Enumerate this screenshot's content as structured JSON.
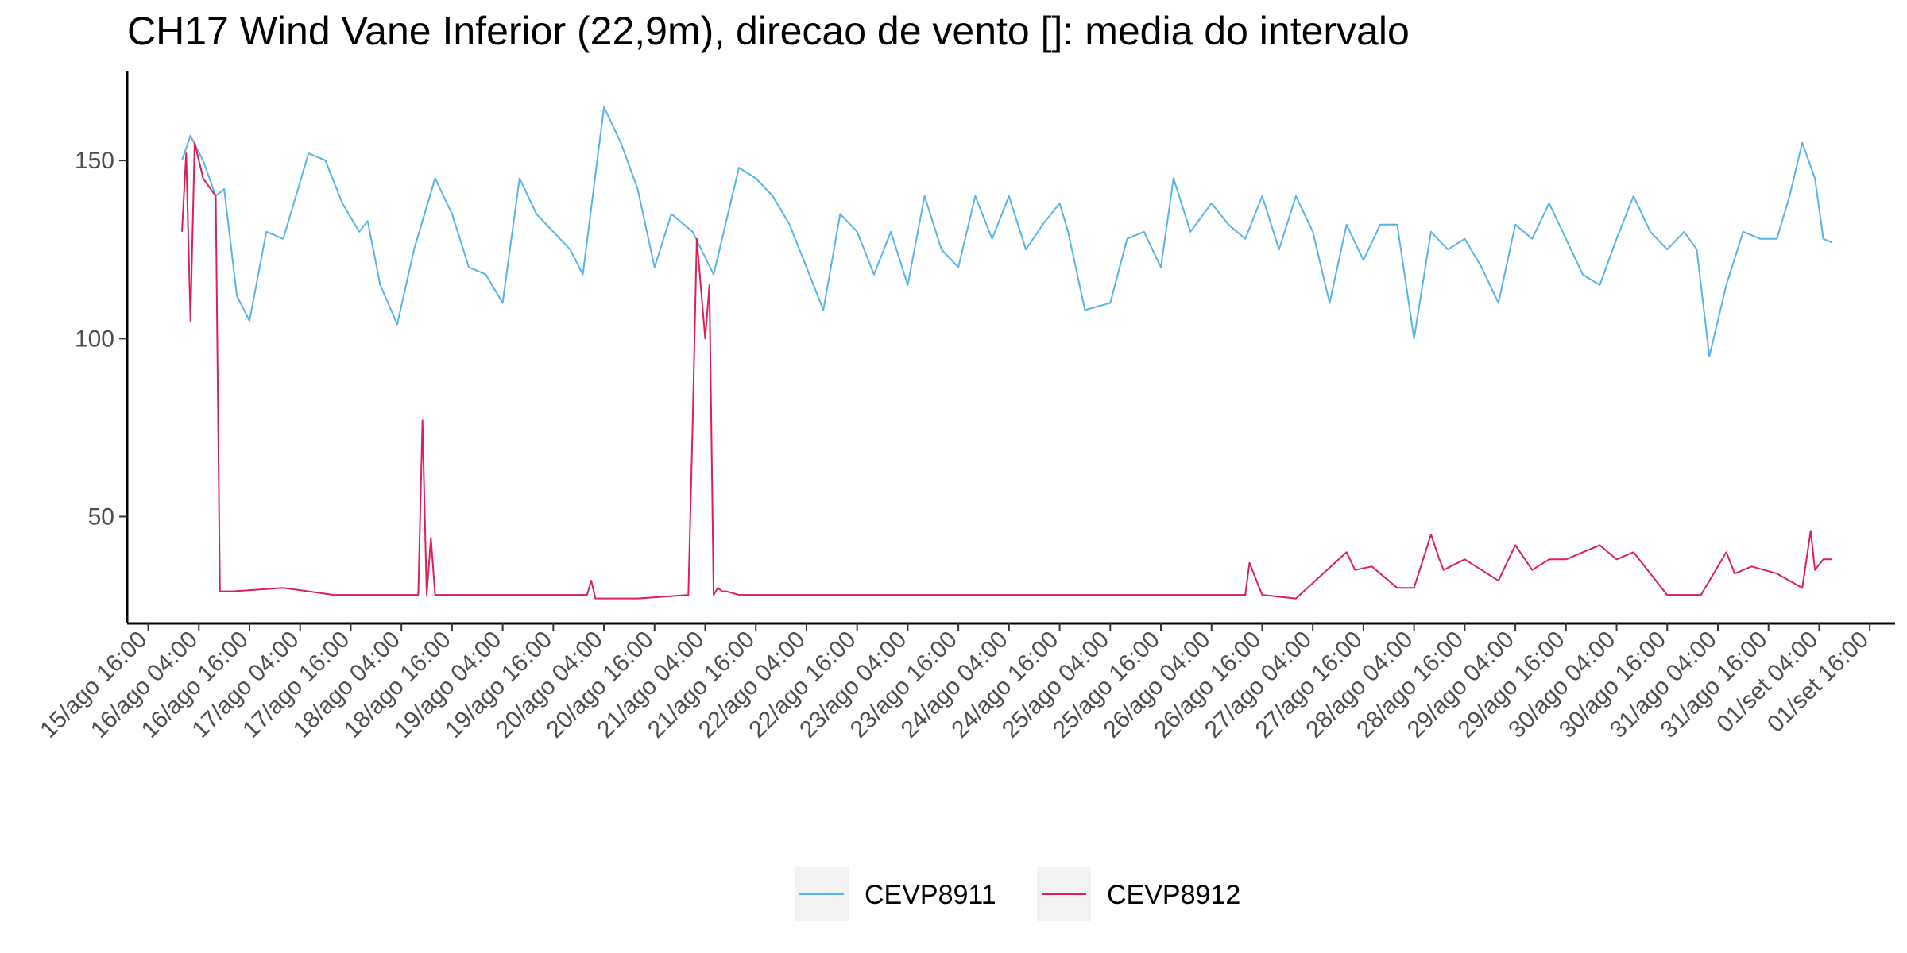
{
  "chart_data": {
    "type": "line",
    "title": "CH17 Wind Vane Inferior (22,9m), direcao de vento []: media do intervalo",
    "xlabel": "",
    "ylabel": "",
    "ylim": [
      20,
      175
    ],
    "xlim": [
      "2020-08-15T11:00",
      "2020-09-01T22:00"
    ],
    "yticks": [
      50,
      100,
      150
    ],
    "xticks": [
      "15/ago 16:00",
      "16/ago 04:00",
      "16/ago 16:00",
      "17/ago 04:00",
      "17/ago 16:00",
      "18/ago 04:00",
      "18/ago 16:00",
      "19/ago 04:00",
      "19/ago 16:00",
      "20/ago 04:00",
      "20/ago 16:00",
      "21/ago 04:00",
      "21/ago 16:00",
      "22/ago 04:00",
      "22/ago 16:00",
      "23/ago 04:00",
      "23/ago 16:00",
      "24/ago 04:00",
      "24/ago 16:00",
      "25/ago 04:00",
      "25/ago 16:00",
      "26/ago 04:00",
      "26/ago 16:00",
      "27/ago 04:00",
      "27/ago 16:00",
      "28/ago 04:00",
      "28/ago 16:00",
      "29/ago 04:00",
      "29/ago 16:00",
      "30/ago 04:00",
      "30/ago 16:00",
      "31/ago 04:00",
      "31/ago 16:00",
      "01/set 04:00",
      "01/set 16:00"
    ],
    "grid": false,
    "legend_position": "bottom",
    "series": [
      {
        "name": "CEVP8911",
        "color": "#56B4E9",
        "x": [
          "2020-08-16T00:00",
          "2020-08-16T02:00",
          "2020-08-16T05:00",
          "2020-08-16T08:00",
          "2020-08-16T10:00",
          "2020-08-16T13:00",
          "2020-08-16T16:00",
          "2020-08-16T20:00",
          "2020-08-17T00:00",
          "2020-08-17T06:00",
          "2020-08-17T10:00",
          "2020-08-17T14:00",
          "2020-08-17T18:00",
          "2020-08-17T20:00",
          "2020-08-17T23:00",
          "2020-08-18T03:00",
          "2020-08-18T07:00",
          "2020-08-18T12:00",
          "2020-08-18T16:00",
          "2020-08-18T20:00",
          "2020-08-19T00:00",
          "2020-08-19T04:00",
          "2020-08-19T08:00",
          "2020-08-19T12:00",
          "2020-08-19T16:00",
          "2020-08-19T20:00",
          "2020-08-19T23:00",
          "2020-08-20T04:00",
          "2020-08-20T08:00",
          "2020-08-20T12:00",
          "2020-08-20T16:00",
          "2020-08-20T20:00",
          "2020-08-21T01:00",
          "2020-08-21T06:00",
          "2020-08-21T12:00",
          "2020-08-21T16:00",
          "2020-08-21T20:00",
          "2020-08-22T00:00",
          "2020-08-22T04:00",
          "2020-08-22T08:00",
          "2020-08-22T12:00",
          "2020-08-22T16:00",
          "2020-08-22T20:00",
          "2020-08-23T00:00",
          "2020-08-23T04:00",
          "2020-08-23T08:00",
          "2020-08-23T12:00",
          "2020-08-23T16:00",
          "2020-08-23T20:00",
          "2020-08-24T00:00",
          "2020-08-24T04:00",
          "2020-08-24T08:00",
          "2020-08-24T12:00",
          "2020-08-24T16:00",
          "2020-08-24T18:00",
          "2020-08-24T22:00",
          "2020-08-25T04:00",
          "2020-08-25T08:00",
          "2020-08-25T12:00",
          "2020-08-25T16:00",
          "2020-08-25T19:00",
          "2020-08-25T23:00",
          "2020-08-26T04:00",
          "2020-08-26T08:00",
          "2020-08-26T12:00",
          "2020-08-26T16:00",
          "2020-08-26T20:00",
          "2020-08-27T00:00",
          "2020-08-27T04:00",
          "2020-08-27T08:00",
          "2020-08-27T12:00",
          "2020-08-27T16:00",
          "2020-08-27T20:00",
          "2020-08-28T00:00",
          "2020-08-28T04:00",
          "2020-08-28T08:00",
          "2020-08-28T12:00",
          "2020-08-28T16:00",
          "2020-08-28T20:00",
          "2020-08-29T00:00",
          "2020-08-29T04:00",
          "2020-08-29T08:00",
          "2020-08-29T12:00",
          "2020-08-29T16:00",
          "2020-08-29T20:00",
          "2020-08-30T00:00",
          "2020-08-30T04:00",
          "2020-08-30T08:00",
          "2020-08-30T12:00",
          "2020-08-30T16:00",
          "2020-08-30T20:00",
          "2020-08-30T23:00",
          "2020-08-31T02:00",
          "2020-08-31T06:00",
          "2020-08-31T10:00",
          "2020-08-31T14:00",
          "2020-08-31T18:00",
          "2020-08-31T21:00",
          "2020-09-01T00:00",
          "2020-09-01T03:00",
          "2020-09-01T05:00",
          "2020-09-01T07:00"
        ],
        "values": [
          150,
          157,
          150,
          140,
          142,
          112,
          105,
          130,
          128,
          152,
          150,
          138,
          130,
          133,
          115,
          104,
          125,
          145,
          135,
          120,
          118,
          110,
          145,
          135,
          130,
          125,
          118,
          165,
          155,
          142,
          120,
          135,
          130,
          118,
          148,
          145,
          140,
          132,
          120,
          108,
          135,
          130,
          118,
          130,
          115,
          140,
          125,
          120,
          140,
          128,
          140,
          125,
          132,
          138,
          130,
          108,
          110,
          128,
          130,
          120,
          145,
          130,
          138,
          132,
          128,
          140,
          125,
          140,
          130,
          110,
          132,
          122,
          132,
          132,
          100,
          130,
          125,
          128,
          120,
          110,
          132,
          128,
          138,
          128,
          118,
          115,
          128,
          140,
          130,
          125,
          130,
          125,
          95,
          115,
          130,
          128,
          128,
          140,
          155,
          145,
          128,
          127
        ]
      },
      {
        "name": "CEVP8912",
        "color": "#DC1F54",
        "x": [
          "2020-08-16T00:00",
          "2020-08-16T01:00",
          "2020-08-16T02:00",
          "2020-08-16T03:00",
          "2020-08-16T04:00",
          "2020-08-16T05:00",
          "2020-08-16T08:00",
          "2020-08-16T09:00",
          "2020-08-16T12:00",
          "2020-08-17T00:00",
          "2020-08-17T12:00",
          "2020-08-18T00:00",
          "2020-08-18T08:00",
          "2020-08-18T09:00",
          "2020-08-18T10:00",
          "2020-08-18T11:00",
          "2020-08-18T12:00",
          "2020-08-19T00:00",
          "2020-08-19T12:00",
          "2020-08-20T00:00",
          "2020-08-20T01:00",
          "2020-08-20T02:00",
          "2020-08-20T12:00",
          "2020-08-21T00:00",
          "2020-08-21T01:00",
          "2020-08-21T02:00",
          "2020-08-21T04:00",
          "2020-08-21T05:00",
          "2020-08-21T06:00",
          "2020-08-21T07:00",
          "2020-08-21T08:00",
          "2020-08-21T09:00",
          "2020-08-21T12:00",
          "2020-08-22T00:00",
          "2020-08-22T12:00",
          "2020-08-23T00:00",
          "2020-08-23T12:00",
          "2020-08-24T00:00",
          "2020-08-24T12:00",
          "2020-08-25T00:00",
          "2020-08-25T12:00",
          "2020-08-26T00:00",
          "2020-08-26T12:00",
          "2020-08-26T13:00",
          "2020-08-26T16:00",
          "2020-08-27T00:00",
          "2020-08-27T12:00",
          "2020-08-27T14:00",
          "2020-08-27T18:00",
          "2020-08-28T00:00",
          "2020-08-28T04:00",
          "2020-08-28T08:00",
          "2020-08-28T10:00",
          "2020-08-28T11:00",
          "2020-08-28T16:00",
          "2020-08-29T00:00",
          "2020-08-29T04:00",
          "2020-08-29T08:00",
          "2020-08-29T12:00",
          "2020-08-29T16:00",
          "2020-08-30T00:00",
          "2020-08-30T04:00",
          "2020-08-30T08:00",
          "2020-08-30T12:00",
          "2020-08-30T16:00",
          "2020-08-31T00:00",
          "2020-08-31T06:00",
          "2020-08-31T08:00",
          "2020-08-31T12:00",
          "2020-08-31T18:00",
          "2020-09-01T00:00",
          "2020-09-01T02:00",
          "2020-09-01T03:00",
          "2020-09-01T05:00",
          "2020-09-01T07:00"
        ],
        "values": [
          130,
          152,
          105,
          155,
          150,
          145,
          140,
          29,
          29,
          30,
          28,
          28,
          28,
          77,
          28,
          44,
          28,
          28,
          28,
          28,
          32,
          27,
          27,
          28,
          75,
          128,
          100,
          115,
          28,
          30,
          29,
          29,
          28,
          28,
          28,
          28,
          28,
          28,
          28,
          28,
          28,
          28,
          28,
          37,
          28,
          27,
          40,
          35,
          36,
          30,
          30,
          45,
          38,
          35,
          38,
          32,
          42,
          35,
          38,
          38,
          42,
          38,
          40,
          34,
          28,
          28,
          40,
          34,
          36,
          34,
          30,
          46,
          35,
          38,
          38
        ]
      }
    ]
  }
}
